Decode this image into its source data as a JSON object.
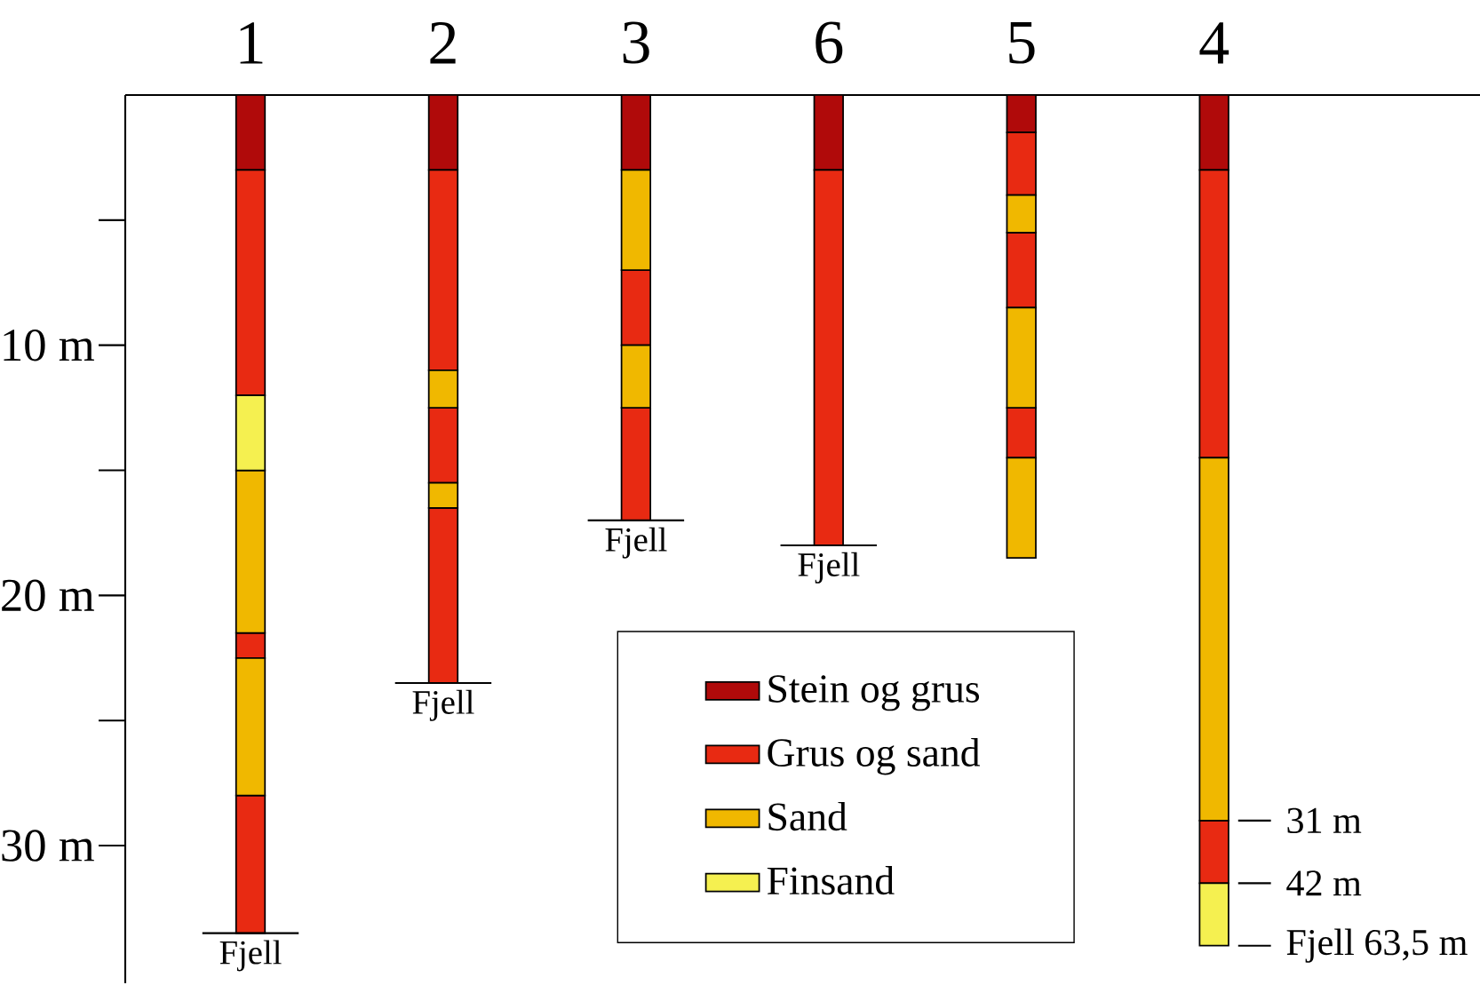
{
  "chart_data": {
    "type": "bar",
    "categories": [
      "1",
      "2",
      "3",
      "6",
      "5",
      "4"
    ],
    "ylim": [
      35.5,
      0
    ],
    "yticks": [
      {
        "value": 10,
        "label": "10 m"
      },
      {
        "value": 20,
        "label": "20 m"
      },
      {
        "value": 30,
        "label": "30 m"
      }
    ],
    "legend": "bottom",
    "series": [
      {
        "name": "Stein og grus",
        "color": "#b00a0a",
        "base": [
          0,
          0,
          0,
          0,
          0,
          0
        ],
        "values": [
          3,
          3,
          3,
          3,
          1.5,
          3
        ]
      },
      {
        "name": "Grus og sand",
        "color": "#e82a12",
        "base": [
          3,
          3,
          7,
          3,
          1.5,
          3
        ],
        "values": [
          9,
          8,
          3,
          15,
          2.5,
          11.5
        ]
      },
      {
        "color": "#e82a12",
        "base": [
          21.5,
          12.5,
          12.5,
          null,
          5.5,
          29
        ],
        "values": [
          1,
          3,
          4.5,
          null,
          3,
          2.5
        ]
      },
      {
        "color": "#e82a12",
        "base": [
          28,
          16.5,
          null,
          null,
          12.5,
          null
        ],
        "values": [
          5.5,
          7,
          null,
          null,
          2,
          null
        ]
      },
      {
        "name": "Sand",
        "color": "#f0b800",
        "base": [
          15,
          11,
          3,
          null,
          4,
          14.5
        ],
        "values": [
          6.5,
          1.5,
          4,
          null,
          1.5,
          14.5
        ]
      },
      {
        "color": "#f0b800",
        "base": [
          22.5,
          15.5,
          10,
          null,
          8.5,
          null
        ],
        "values": [
          5.5,
          1,
          2.5,
          null,
          4,
          null
        ]
      },
      {
        "color": "#f0b800",
        "base": [
          null,
          null,
          null,
          null,
          14.5,
          null
        ],
        "values": [
          null,
          null,
          null,
          null,
          4,
          null
        ]
      },
      {
        "name": "Finsand",
        "color": "#f5f050",
        "base": [
          12,
          null,
          null,
          null,
          null,
          31.5
        ],
        "values": [
          3,
          null,
          null,
          null,
          null,
          2.5
        ]
      }
    ],
    "annotations": [
      {
        "text": "Fjell",
        "x": "1",
        "y": 33.5
      },
      {
        "text": "Fjell",
        "x": "2",
        "y": 23.5
      },
      {
        "text": "Fjell",
        "x": "3",
        "y": 17
      },
      {
        "text": "Fjell",
        "x": "6",
        "y": 18
      },
      {
        "text": "31 m",
        "x": "4",
        "y": 29
      },
      {
        "text": "42 m",
        "x": "4",
        "y": 31.5
      },
      {
        "text": "Fjell 63,5 m",
        "x": "4",
        "y": 34
      }
    ]
  }
}
